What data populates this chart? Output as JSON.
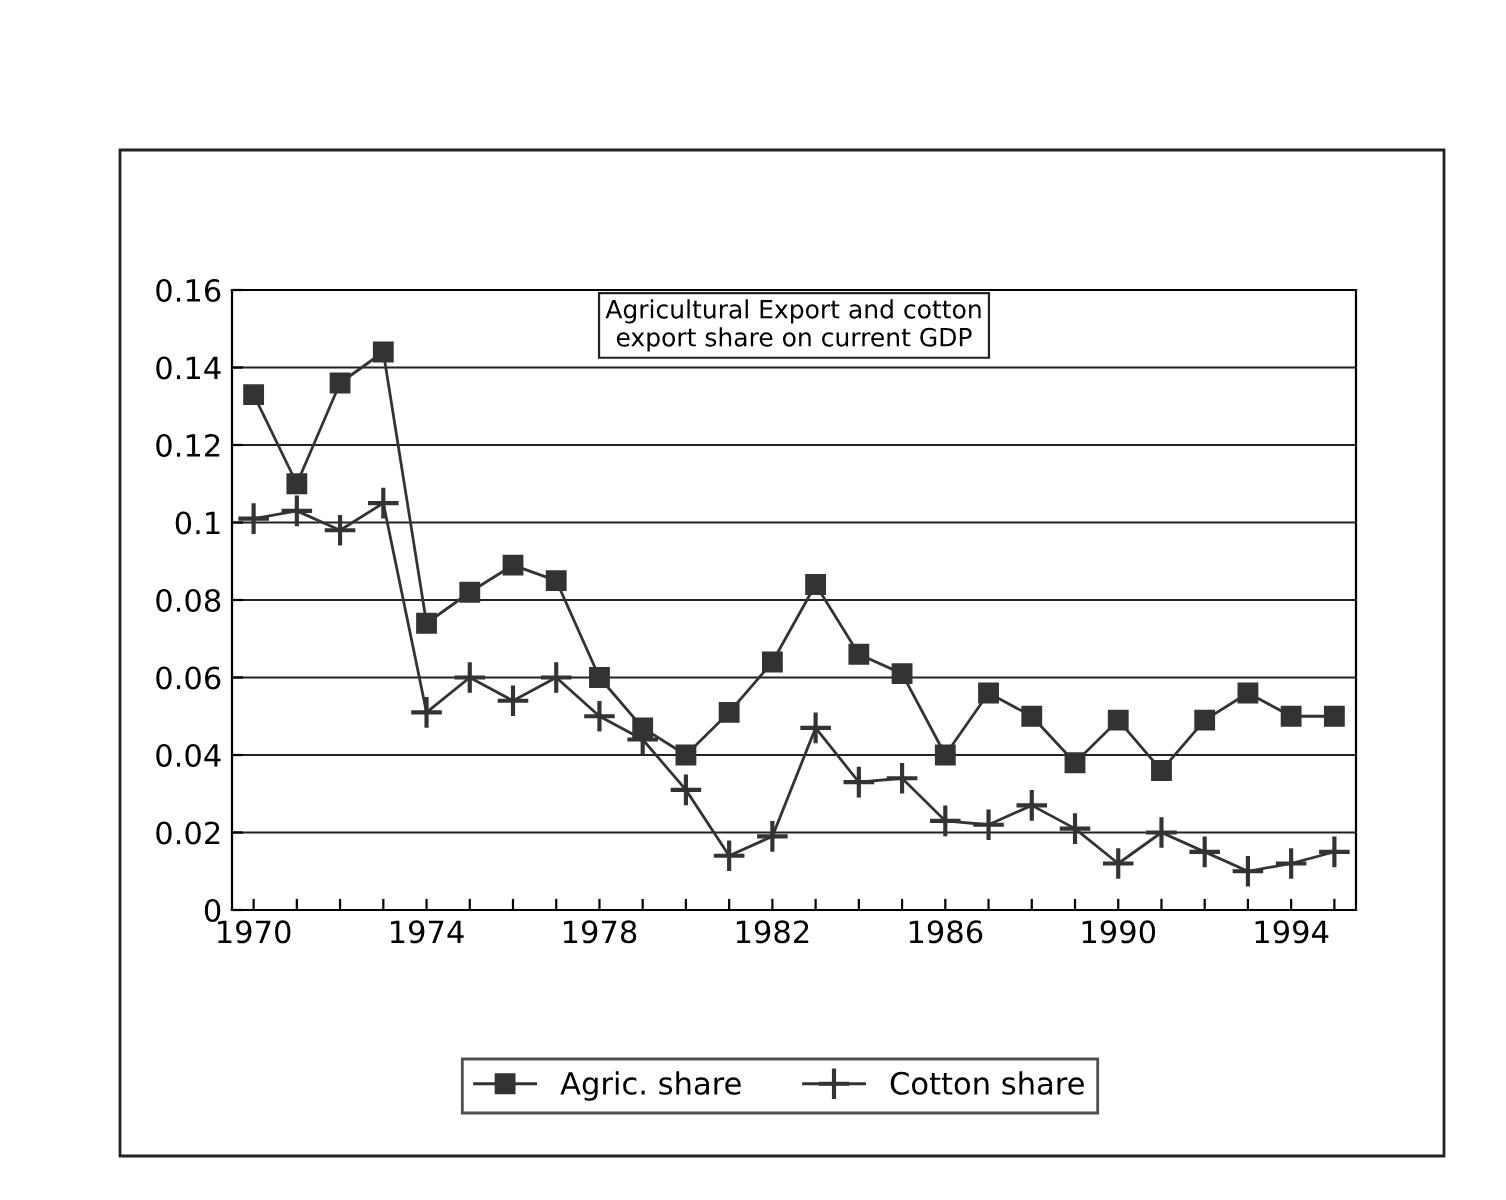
{
  "chart_data": {
    "type": "line",
    "title": "Agricultural Export and cotton\nexport share on current GDP",
    "categories": [
      "1970",
      null,
      null,
      null,
      "1974",
      null,
      null,
      null,
      "1978",
      null,
      null,
      null,
      "1982",
      null,
      null,
      null,
      "1986",
      null,
      null,
      null,
      "1990",
      null,
      null,
      null,
      "1994",
      null
    ],
    "series": [
      {
        "name": "Agric. share",
        "color": "#333333",
        "marker": "square",
        "values": [
          0.133,
          0.11,
          0.136,
          0.144,
          0.074,
          0.082,
          0.089,
          0.085,
          0.06,
          0.047,
          0.04,
          0.051,
          0.064,
          0.084,
          0.066,
          0.061,
          0.04,
          0.056,
          0.05,
          0.038,
          0.049,
          0.036,
          0.049,
          0.056,
          0.05,
          0.05
        ]
      },
      {
        "name": "Cotton share",
        "color": "#333333",
        "marker": "cross",
        "values": [
          0.101,
          0.103,
          0.098,
          0.105,
          0.051,
          0.06,
          0.054,
          0.06,
          0.05,
          0.044,
          0.031,
          0.014,
          0.019,
          0.047,
          0.033,
          0.034,
          0.023,
          0.022,
          0.027,
          0.021,
          0.012,
          0.02,
          0.015,
          0.01,
          0.012,
          0.015
        ]
      }
    ],
    "ylim": [
      0,
      0.16
    ],
    "yticks": [
      0,
      {
        "value": 0.02,
        "label": "0.02"
      },
      {
        "value": 0.04,
        "label": "0.04"
      },
      {
        "value": 0.06,
        "label": "0.06"
      },
      {
        "value": 0.08,
        "label": "0.08"
      },
      {
        "value": 0.1,
        "label": "0.1"
      },
      {
        "value": 0.12,
        "label": "0.12"
      },
      {
        "value": 0.14,
        "label": "0.14"
      },
      {
        "value": 0.16,
        "label": "0.16"
      }
    ],
    "grid": "y",
    "legend": "bottom",
    "line_style": "solid"
  }
}
